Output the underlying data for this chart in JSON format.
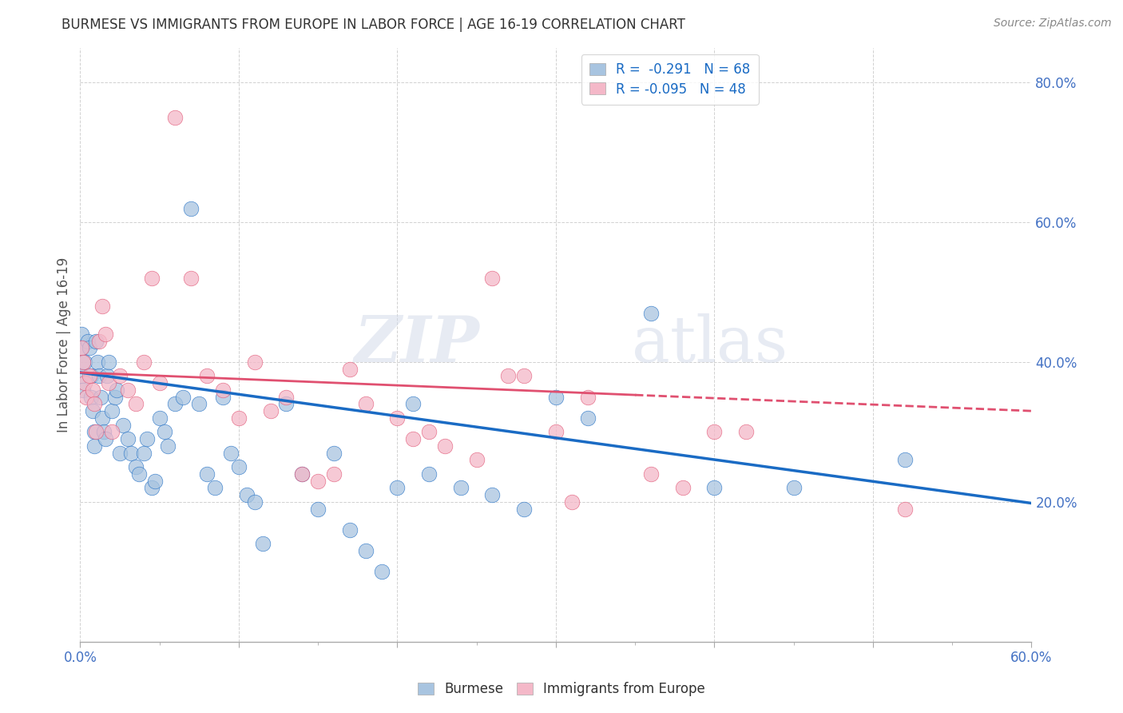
{
  "title": "BURMESE VS IMMIGRANTS FROM EUROPE IN LABOR FORCE | AGE 16-19 CORRELATION CHART",
  "source": "Source: ZipAtlas.com",
  "ylabel": "In Labor Force | Age 16-19",
  "xlim": [
    0.0,
    0.6
  ],
  "ylim": [
    0.0,
    0.85
  ],
  "xtick_labels": [
    "0.0%",
    "",
    "",
    "",
    "",
    "",
    "",
    "",
    "",
    "",
    "",
    "",
    "60.0%"
  ],
  "yticks_right": [
    0.2,
    0.4,
    0.6,
    0.8
  ],
  "burmese_color": "#a8c4e0",
  "europe_color": "#f4b8c8",
  "burmese_line_color": "#1a6bc4",
  "europe_line_color": "#e05070",
  "burmese_R": -0.291,
  "burmese_N": 68,
  "europe_R": -0.095,
  "europe_N": 48,
  "watermark_zip": "ZIP",
  "watermark_atlas": "atlas",
  "legend_label_1": "Burmese",
  "legend_label_2": "Immigrants from Europe",
  "burmese_x": [
    0.001,
    0.001,
    0.001,
    0.002,
    0.003,
    0.005,
    0.006,
    0.007,
    0.007,
    0.008,
    0.009,
    0.009,
    0.01,
    0.011,
    0.012,
    0.013,
    0.014,
    0.015,
    0.016,
    0.017,
    0.018,
    0.02,
    0.022,
    0.023,
    0.025,
    0.027,
    0.03,
    0.032,
    0.035,
    0.037,
    0.04,
    0.042,
    0.045,
    0.047,
    0.05,
    0.053,
    0.055,
    0.06,
    0.065,
    0.07,
    0.075,
    0.08,
    0.085,
    0.09,
    0.095,
    0.1,
    0.105,
    0.11,
    0.115,
    0.13,
    0.14,
    0.15,
    0.16,
    0.17,
    0.18,
    0.19,
    0.2,
    0.21,
    0.22,
    0.24,
    0.26,
    0.28,
    0.3,
    0.32,
    0.36,
    0.4,
    0.45,
    0.52
  ],
  "burmese_y": [
    0.44,
    0.42,
    0.38,
    0.36,
    0.4,
    0.43,
    0.42,
    0.38,
    0.35,
    0.33,
    0.3,
    0.28,
    0.43,
    0.4,
    0.38,
    0.35,
    0.32,
    0.3,
    0.29,
    0.38,
    0.4,
    0.33,
    0.35,
    0.36,
    0.27,
    0.31,
    0.29,
    0.27,
    0.25,
    0.24,
    0.27,
    0.29,
    0.22,
    0.23,
    0.32,
    0.3,
    0.28,
    0.34,
    0.35,
    0.62,
    0.34,
    0.24,
    0.22,
    0.35,
    0.27,
    0.25,
    0.21,
    0.2,
    0.14,
    0.34,
    0.24,
    0.19,
    0.27,
    0.16,
    0.13,
    0.1,
    0.22,
    0.34,
    0.24,
    0.22,
    0.21,
    0.19,
    0.35,
    0.32,
    0.47,
    0.22,
    0.22,
    0.26
  ],
  "europe_x": [
    0.001,
    0.002,
    0.003,
    0.004,
    0.006,
    0.008,
    0.009,
    0.01,
    0.012,
    0.014,
    0.016,
    0.018,
    0.02,
    0.025,
    0.03,
    0.035,
    0.04,
    0.045,
    0.05,
    0.06,
    0.07,
    0.08,
    0.09,
    0.1,
    0.11,
    0.12,
    0.13,
    0.14,
    0.15,
    0.16,
    0.17,
    0.18,
    0.2,
    0.21,
    0.22,
    0.23,
    0.25,
    0.26,
    0.27,
    0.28,
    0.3,
    0.31,
    0.32,
    0.36,
    0.38,
    0.4,
    0.42,
    0.52
  ],
  "europe_y": [
    0.42,
    0.4,
    0.37,
    0.35,
    0.38,
    0.36,
    0.34,
    0.3,
    0.43,
    0.48,
    0.44,
    0.37,
    0.3,
    0.38,
    0.36,
    0.34,
    0.4,
    0.52,
    0.37,
    0.75,
    0.52,
    0.38,
    0.36,
    0.32,
    0.4,
    0.33,
    0.35,
    0.24,
    0.23,
    0.24,
    0.39,
    0.34,
    0.32,
    0.29,
    0.3,
    0.28,
    0.26,
    0.52,
    0.38,
    0.38,
    0.3,
    0.2,
    0.35,
    0.24,
    0.22,
    0.3,
    0.3,
    0.19
  ],
  "burmese_regression": [
    0.385,
    0.198
  ],
  "europe_regression": [
    0.385,
    0.33
  ]
}
